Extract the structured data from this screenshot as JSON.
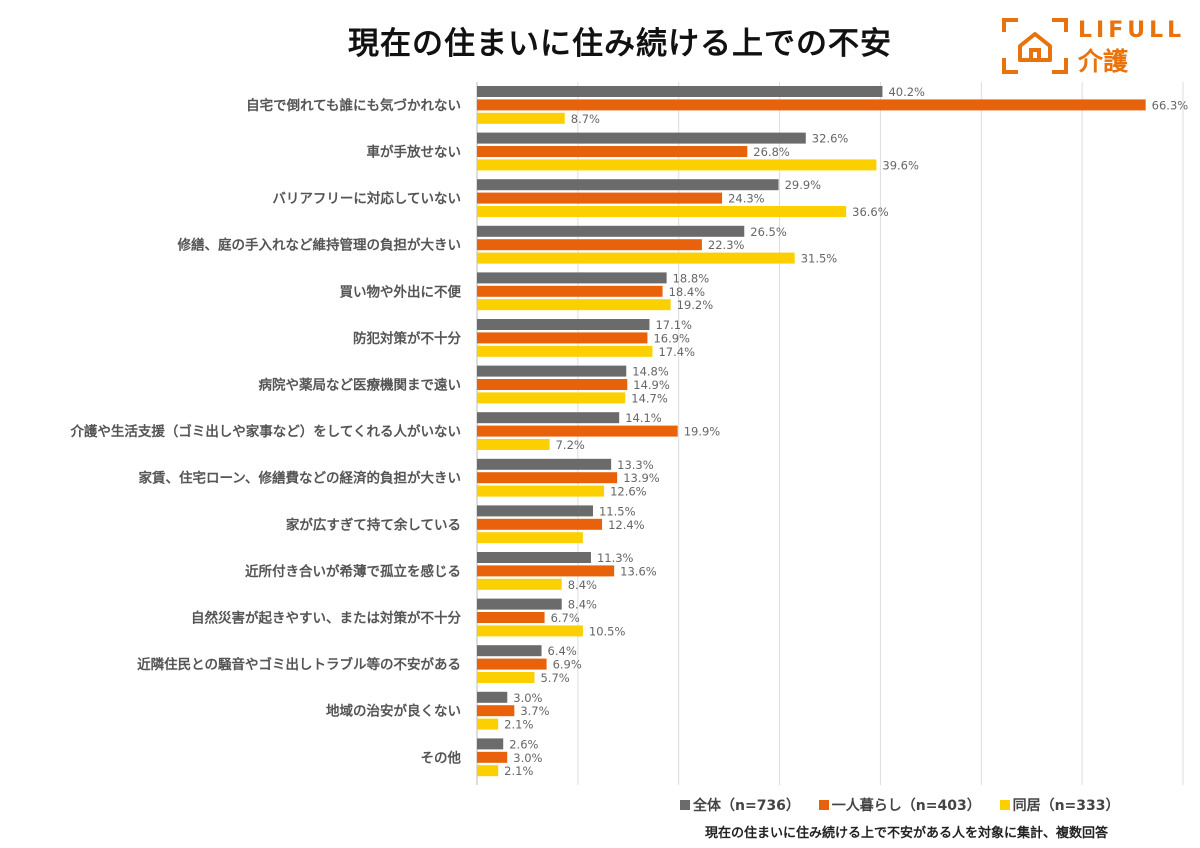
{
  "colors": {
    "all": "#6b6b6b",
    "single": "#e8620c",
    "cohabit": "#fcd000",
    "grid": "#dddddd",
    "brand": "#e8720c"
  },
  "logo": {
    "line1": "LIFULL",
    "line2": "介護"
  },
  "legend": {
    "all": "全体（n=736）",
    "single": "一人暮らし（n=403）",
    "cohabit": "同居（n=333）"
  },
  "footnote": "現在の住まいに住み続ける上で不安がある人を対象に集計、複数回答",
  "chart_data": {
    "type": "bar",
    "orientation": "horizontal",
    "title": "現在の住まいに住み続ける上での不安",
    "xlim": [
      0,
      70
    ],
    "grid": true,
    "categories": [
      "自宅で倒れても誰にも気づかれない",
      "車が手放せない",
      "バリアフリーに対応していない",
      "修繕、庭の手入れなど維持管理の負担が大きい",
      "買い物や外出に不便",
      "防犯対策が不十分",
      "病院や薬局など医療機関まで遠い",
      "介護や生活支援（ゴミ出しや家事など）をしてくれる人がいない",
      "家賃、住宅ローン、修繕費などの経済的負担が大きい",
      "家が広すぎて持て余している",
      "近所付き合いが希薄で孤立を感じる",
      "自然災害が起きやすい、または対策が不十分",
      "近隣住民との騒音やゴミ出しトラブル等の不安がある",
      "地域の治安が良くない",
      "その他"
    ],
    "series": [
      {
        "name": "全体（n=736）",
        "key": "all",
        "values": [
          40.2,
          32.6,
          29.9,
          26.5,
          18.8,
          17.1,
          14.8,
          14.1,
          13.3,
          11.5,
          11.3,
          8.4,
          6.4,
          3.0,
          2.6
        ],
        "labels": [
          "40.2%",
          "32.6%",
          "29.9%",
          "26.5%",
          "18.8%",
          "17.1%",
          "14.8%",
          "14.1%",
          "13.3%",
          "11.5%",
          "11.3%",
          "8.4%",
          "6.4%",
          "3.0%",
          "2.6%"
        ]
      },
      {
        "name": "一人暮らし（n=403）",
        "key": "single",
        "values": [
          66.3,
          26.8,
          24.3,
          22.3,
          18.4,
          16.9,
          14.9,
          19.9,
          13.9,
          12.4,
          13.6,
          6.7,
          6.9,
          3.7,
          3.0
        ],
        "labels": [
          "66.3%",
          "26.8%",
          "24.3%",
          "22.3%",
          "18.4%",
          "16.9%",
          "14.9%",
          "19.9%",
          "13.9%",
          "12.4%",
          "13.6%",
          "6.7%",
          "6.9%",
          "3.7%",
          "3.0%"
        ]
      },
      {
        "name": "同居（n=333）",
        "key": "cohabit",
        "values": [
          8.7,
          39.6,
          36.6,
          31.5,
          19.2,
          17.4,
          14.7,
          7.2,
          12.6,
          10.5,
          8.4,
          10.5,
          5.7,
          2.1,
          2.1
        ],
        "labels": [
          "8.7%",
          "39.6%",
          "36.6%",
          "31.5%",
          "19.2%",
          "17.4%",
          "14.7%",
          "7.2%",
          "12.6%",
          "",
          "8.4%",
          "10.5%",
          "5.7%",
          "2.1%",
          "2.1%"
        ]
      }
    ]
  }
}
